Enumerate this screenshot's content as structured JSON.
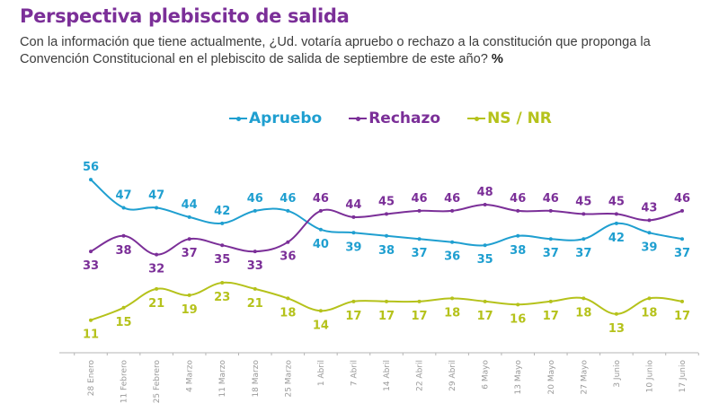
{
  "header": {
    "title": "Perspectiva plebiscito de salida",
    "subtitle": "Con la información que tiene actualmente, ¿Ud. votaría apruebo o rechazo a la constitución que proponga la Convención Constitucional en el plebiscito de salida de septiembre de este año?",
    "unit": "%"
  },
  "chart_data": {
    "type": "line",
    "title": "Perspectiva plebiscito de salida",
    "xlabel": "",
    "ylabel": "%",
    "ylim": [
      0,
      60
    ],
    "grid": false,
    "legend_position": "top-center",
    "categories": [
      "28 Enero",
      "11 Febrero",
      "25 Febrero",
      "4 Marzo",
      "11 Marzo",
      "18 Marzo",
      "25 Marzo",
      "1 Abril",
      "7 Abril",
      "14 Abril",
      "22 Abril",
      "29 Abril",
      "6 Mayo",
      "13 Mayo",
      "20 Mayo",
      "27 Mayo",
      "3 Junio",
      "10 Junio",
      "17 Junio"
    ],
    "series": [
      {
        "name": "Apruebo",
        "color": "#1f9fd0",
        "values": [
          56,
          47,
          47,
          44,
          42,
          46,
          46,
          40,
          39,
          38,
          37,
          36,
          35,
          38,
          37,
          37,
          42,
          39,
          37
        ]
      },
      {
        "name": "Rechazo",
        "color": "#7b2f98",
        "values": [
          33,
          38,
          32,
          37,
          35,
          33,
          36,
          46,
          44,
          45,
          46,
          46,
          48,
          46,
          46,
          45,
          45,
          43,
          46
        ]
      },
      {
        "name": "NS / NR",
        "color": "#b5c21b",
        "values": [
          11,
          15,
          21,
          19,
          23,
          21,
          18,
          14,
          17,
          17,
          17,
          18,
          17,
          16,
          17,
          18,
          13,
          18,
          17
        ]
      }
    ]
  }
}
